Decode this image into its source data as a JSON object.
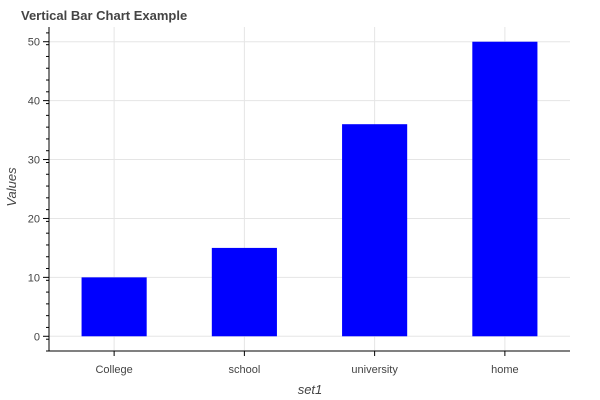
{
  "chart_data": {
    "type": "bar",
    "title": "Vertical Bar Chart Example",
    "xlabel": "set1",
    "ylabel": "Values",
    "categories": [
      "College",
      "school",
      "university",
      "home"
    ],
    "values": [
      10,
      15,
      36,
      50
    ],
    "ylim": [
      -2.5,
      52.5
    ],
    "yticks": [
      0,
      10,
      20,
      30,
      40,
      50
    ],
    "grid": true,
    "bar_color": "#0000ff"
  }
}
